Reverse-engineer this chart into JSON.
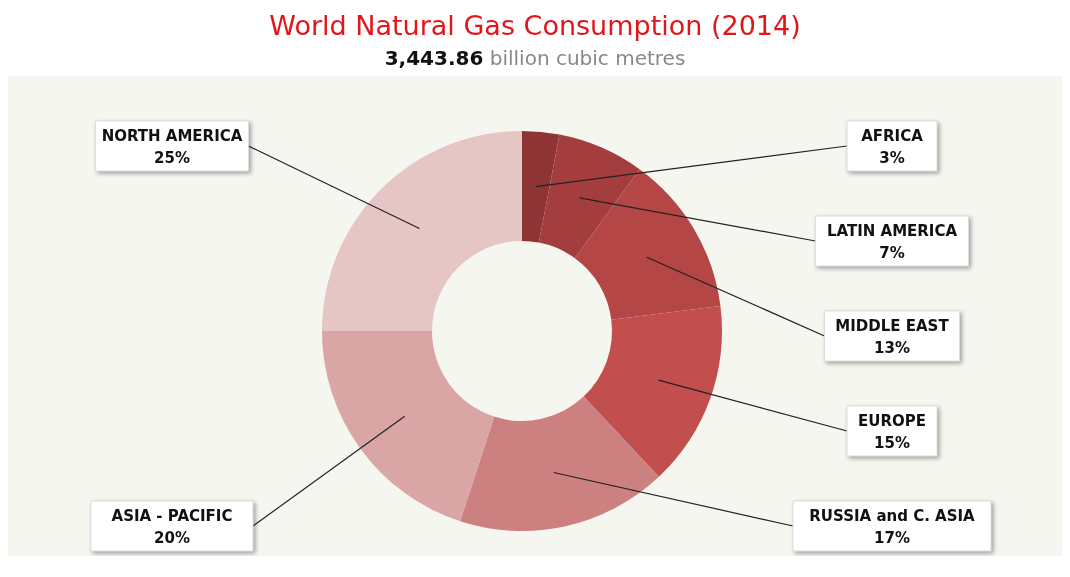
{
  "chart_data": {
    "type": "donut",
    "title": "World Natural Gas Consumption (2014)",
    "subtitle": "3,443.86 billion cubic metres",
    "categories": [
      "AFRICA",
      "LATIN AMERICA",
      "MIDDLE EAST",
      "EUROPE",
      "RUSSIA and C. ASIA",
      "ASIA - PACIFIC",
      "NORTH AMERICA"
    ],
    "values": [
      3,
      7,
      13,
      15,
      17,
      20,
      25
    ],
    "value_labels": [
      "3%",
      "7%",
      "13%",
      "15%",
      "17%",
      "20%",
      "25%"
    ],
    "colors": [
      "#8e3434",
      "#a43e3e",
      "#b54646",
      "#c24e4e",
      "#cc8080",
      "#d9a5a5",
      "#e6c5c5"
    ],
    "legend": false
  }
}
